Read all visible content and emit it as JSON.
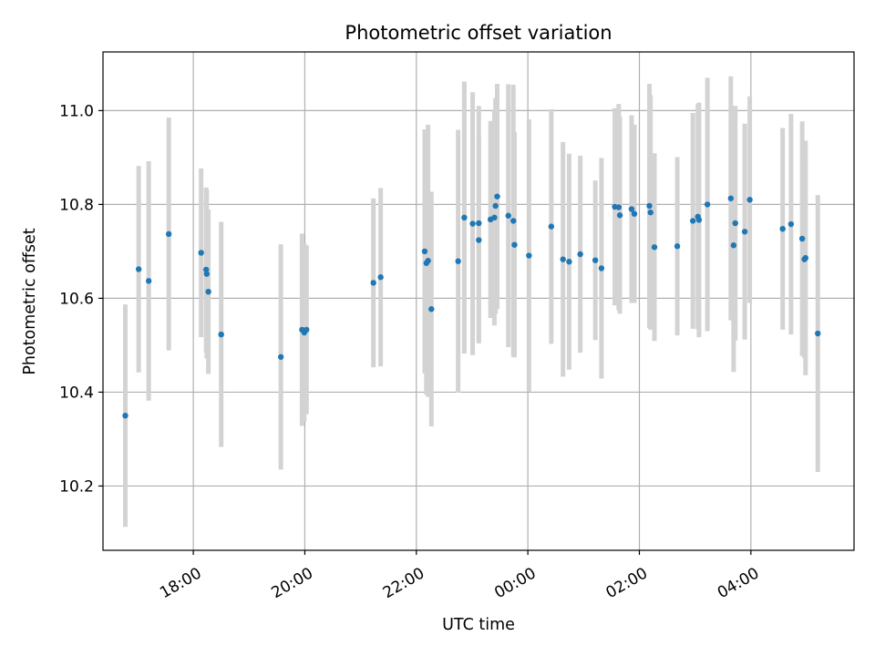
{
  "chart_data": {
    "type": "scatter",
    "title": "Photometric offset variation",
    "xlabel": "UTC time",
    "ylabel": "Photometric offset",
    "x_axis": "time (hours since 00:00 UTC; day boundary at 00:00)",
    "x_ticks": [
      {
        "value": -6,
        "label": "18:00"
      },
      {
        "value": -4,
        "label": "20:00"
      },
      {
        "value": -2,
        "label": "22:00"
      },
      {
        "value": 0,
        "label": "00:00"
      },
      {
        "value": 2,
        "label": "02:00"
      },
      {
        "value": 4,
        "label": "04:00"
      }
    ],
    "y_ticks": [
      10.2,
      10.4,
      10.6,
      10.8,
      11.0
    ],
    "xlim": [
      -7.62,
      5.85
    ],
    "ylim": [
      10.063,
      11.125
    ],
    "grid": true,
    "colors": {
      "points": "#1f77b4",
      "errorbars": "#d3d3d3"
    },
    "series": [
      {
        "points": [
          {
            "x": -7.22,
            "y": 10.35,
            "err": 0.237
          },
          {
            "x": -6.98,
            "y": 10.662,
            "err": 0.22
          },
          {
            "x": -6.8,
            "y": 10.637,
            "err": 0.255
          },
          {
            "x": -6.44,
            "y": 10.737,
            "err": 0.248
          },
          {
            "x": -5.86,
            "y": 10.697,
            "err": 0.18
          },
          {
            "x": -5.77,
            "y": 10.661,
            "err": 0.175
          },
          {
            "x": -5.76,
            "y": 10.652,
            "err": 0.18
          },
          {
            "x": -5.73,
            "y": 10.614,
            "err": 0.175
          },
          {
            "x": -5.5,
            "y": 10.523,
            "err": 0.24
          },
          {
            "x": -4.43,
            "y": 10.475,
            "err": 0.24
          },
          {
            "x": -4.05,
            "y": 10.533,
            "err": 0.205
          },
          {
            "x": -4.01,
            "y": 10.527,
            "err": 0.19
          },
          {
            "x": -3.97,
            "y": 10.533,
            "err": 0.18
          },
          {
            "x": -2.77,
            "y": 10.633,
            "err": 0.18
          },
          {
            "x": -2.64,
            "y": 10.645,
            "err": 0.19
          },
          {
            "x": -1.85,
            "y": 10.7,
            "err": 0.26
          },
          {
            "x": -1.82,
            "y": 10.675,
            "err": 0.28
          },
          {
            "x": -1.79,
            "y": 10.68,
            "err": 0.29
          },
          {
            "x": -1.73,
            "y": 10.577,
            "err": 0.25
          },
          {
            "x": -1.25,
            "y": 10.679,
            "err": 0.28
          },
          {
            "x": -1.14,
            "y": 10.772,
            "err": 0.29
          },
          {
            "x": -0.99,
            "y": 10.759,
            "err": 0.28
          },
          {
            "x": -0.88,
            "y": 10.724,
            "err": 0.22
          },
          {
            "x": -0.88,
            "y": 10.76,
            "err": 0.25
          },
          {
            "x": -0.67,
            "y": 10.768,
            "err": 0.21
          },
          {
            "x": -0.6,
            "y": 10.772,
            "err": 0.23
          },
          {
            "x": -0.58,
            "y": 10.797,
            "err": 0.23
          },
          {
            "x": -0.55,
            "y": 10.817,
            "err": 0.24
          },
          {
            "x": -0.35,
            "y": 10.776,
            "err": 0.28
          },
          {
            "x": -0.26,
            "y": 10.765,
            "err": 0.29
          },
          {
            "x": -0.24,
            "y": 10.714,
            "err": 0.24
          },
          {
            "x": 0.02,
            "y": 10.691,
            "err": 0.29
          },
          {
            "x": 0.42,
            "y": 10.753,
            "err": 0.25
          },
          {
            "x": 0.63,
            "y": 10.683,
            "err": 0.25
          },
          {
            "x": 0.74,
            "y": 10.678,
            "err": 0.23
          },
          {
            "x": 0.94,
            "y": 10.694,
            "err": 0.21
          },
          {
            "x": 1.21,
            "y": 10.681,
            "err": 0.17
          },
          {
            "x": 1.32,
            "y": 10.664,
            "err": 0.235
          },
          {
            "x": 1.56,
            "y": 10.795,
            "err": 0.21
          },
          {
            "x": 1.63,
            "y": 10.794,
            "err": 0.22
          },
          {
            "x": 1.65,
            "y": 10.777,
            "err": 0.21
          },
          {
            "x": 1.86,
            "y": 10.79,
            "err": 0.2
          },
          {
            "x": 1.91,
            "y": 10.78,
            "err": 0.19
          },
          {
            "x": 2.18,
            "y": 10.797,
            "err": 0.26
          },
          {
            "x": 2.2,
            "y": 10.783,
            "err": 0.25
          },
          {
            "x": 2.27,
            "y": 10.709,
            "err": 0.2
          },
          {
            "x": 2.68,
            "y": 10.711,
            "err": 0.19
          },
          {
            "x": 2.96,
            "y": 10.765,
            "err": 0.23
          },
          {
            "x": 3.05,
            "y": 10.774,
            "err": 0.24
          },
          {
            "x": 3.07,
            "y": 10.767,
            "err": 0.25
          },
          {
            "x": 3.22,
            "y": 10.8,
            "err": 0.27
          },
          {
            "x": 3.64,
            "y": 10.813,
            "err": 0.26
          },
          {
            "x": 3.69,
            "y": 10.713,
            "err": 0.27
          },
          {
            "x": 3.72,
            "y": 10.76,
            "err": 0.25
          },
          {
            "x": 3.89,
            "y": 10.742,
            "err": 0.23
          },
          {
            "x": 3.98,
            "y": 10.81,
            "err": 0.22
          },
          {
            "x": 4.57,
            "y": 10.748,
            "err": 0.215
          },
          {
            "x": 4.72,
            "y": 10.758,
            "err": 0.235
          },
          {
            "x": 4.92,
            "y": 10.727,
            "err": 0.25
          },
          {
            "x": 4.96,
            "y": 10.683,
            "err": 0.21
          },
          {
            "x": 4.98,
            "y": 10.686,
            "err": 0.25
          },
          {
            "x": 5.2,
            "y": 10.525,
            "err": 0.295
          }
        ]
      }
    ]
  }
}
